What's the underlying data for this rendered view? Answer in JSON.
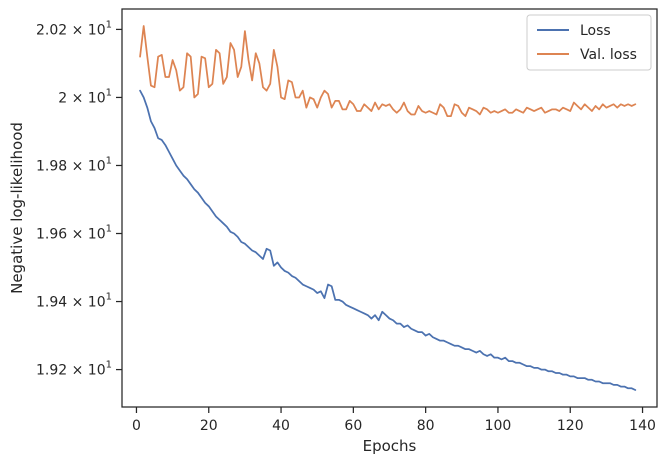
{
  "chart_data": {
    "type": "line",
    "xlabel": "Epochs",
    "ylabel": "Negative log-likelihood",
    "xlim": [
      -4,
      144
    ],
    "ylim": [
      19.09,
      20.26
    ],
    "grid": false,
    "legend_position": "top-right",
    "x_ticks": [
      0,
      20,
      40,
      60,
      80,
      100,
      120,
      140
    ],
    "y_ticks": [
      {
        "value": 19.2,
        "mantissa": "1.92"
      },
      {
        "value": 19.4,
        "mantissa": "1.94"
      },
      {
        "value": 19.6,
        "mantissa": "1.96"
      },
      {
        "value": 19.8,
        "mantissa": "1.98"
      },
      {
        "value": 20.0,
        "mantissa": "2"
      },
      {
        "value": 20.2,
        "mantissa": "2.02"
      }
    ],
    "y_tick_suffix": {
      "times": "×",
      "base": "10",
      "exp": "1"
    },
    "series": [
      {
        "name": "Loss",
        "color": "#4c72b0",
        "x": [
          1,
          2,
          3,
          4,
          5,
          6,
          7,
          8,
          9,
          10,
          11,
          12,
          13,
          14,
          15,
          16,
          17,
          18,
          19,
          20,
          21,
          22,
          23,
          24,
          25,
          26,
          27,
          28,
          29,
          30,
          31,
          32,
          33,
          34,
          35,
          36,
          37,
          38,
          39,
          40,
          41,
          42,
          43,
          44,
          45,
          46,
          47,
          48,
          49,
          50,
          51,
          52,
          53,
          54,
          55,
          56,
          57,
          58,
          59,
          60,
          61,
          62,
          63,
          64,
          65,
          66,
          67,
          68,
          69,
          70,
          71,
          72,
          73,
          74,
          75,
          76,
          77,
          78,
          79,
          80,
          81,
          82,
          83,
          84,
          85,
          86,
          87,
          88,
          89,
          90,
          91,
          92,
          93,
          94,
          95,
          96,
          97,
          98,
          99,
          100,
          101,
          102,
          103,
          104,
          105,
          106,
          107,
          108,
          109,
          110,
          111,
          112,
          113,
          114,
          115,
          116,
          117,
          118,
          119,
          120,
          121,
          122,
          123,
          124,
          125,
          126,
          127,
          128,
          129,
          130,
          131,
          132,
          133,
          134,
          135,
          136,
          137,
          138
        ],
        "y": [
          20.02,
          20.0,
          19.97,
          19.93,
          19.91,
          19.88,
          19.875,
          19.86,
          19.84,
          19.82,
          19.8,
          19.785,
          19.77,
          19.76,
          19.745,
          19.73,
          19.72,
          19.705,
          19.69,
          19.68,
          19.665,
          19.65,
          19.64,
          19.63,
          19.62,
          19.605,
          19.6,
          19.59,
          19.575,
          19.57,
          19.56,
          19.55,
          19.545,
          19.535,
          19.525,
          19.555,
          19.55,
          19.505,
          19.515,
          19.5,
          19.49,
          19.485,
          19.475,
          19.47,
          19.46,
          19.45,
          19.445,
          19.44,
          19.435,
          19.425,
          19.43,
          19.41,
          19.45,
          19.445,
          19.405,
          19.405,
          19.4,
          19.39,
          19.385,
          19.38,
          19.375,
          19.37,
          19.365,
          19.36,
          19.35,
          19.36,
          19.345,
          19.37,
          19.36,
          19.35,
          19.345,
          19.335,
          19.335,
          19.325,
          19.33,
          19.32,
          19.315,
          19.31,
          19.31,
          19.3,
          19.305,
          19.295,
          19.29,
          19.285,
          19.285,
          19.28,
          19.275,
          19.27,
          19.27,
          19.265,
          19.26,
          19.26,
          19.255,
          19.25,
          19.255,
          19.245,
          19.24,
          19.245,
          19.235,
          19.235,
          19.23,
          19.235,
          19.225,
          19.225,
          19.22,
          19.22,
          19.215,
          19.21,
          19.21,
          19.205,
          19.205,
          19.2,
          19.2,
          19.195,
          19.195,
          19.19,
          19.19,
          19.185,
          19.185,
          19.18,
          19.18,
          19.175,
          19.175,
          19.175,
          19.17,
          19.17,
          19.165,
          19.165,
          19.16,
          19.16,
          19.16,
          19.155,
          19.155,
          19.15,
          19.15,
          19.145,
          19.145,
          19.14
        ]
      },
      {
        "name": "Val. loss",
        "color": "#dd8452",
        "x": [
          1,
          2,
          3,
          4,
          5,
          6,
          7,
          8,
          9,
          10,
          11,
          12,
          13,
          14,
          15,
          16,
          17,
          18,
          19,
          20,
          21,
          22,
          23,
          24,
          25,
          26,
          27,
          28,
          29,
          30,
          31,
          32,
          33,
          34,
          35,
          36,
          37,
          38,
          39,
          40,
          41,
          42,
          43,
          44,
          45,
          46,
          47,
          48,
          49,
          50,
          51,
          52,
          53,
          54,
          55,
          56,
          57,
          58,
          59,
          60,
          61,
          62,
          63,
          64,
          65,
          66,
          67,
          68,
          69,
          70,
          71,
          72,
          73,
          74,
          75,
          76,
          77,
          78,
          79,
          80,
          81,
          82,
          83,
          84,
          85,
          86,
          87,
          88,
          89,
          90,
          91,
          92,
          93,
          94,
          95,
          96,
          97,
          98,
          99,
          100,
          101,
          102,
          103,
          104,
          105,
          106,
          107,
          108,
          109,
          110,
          111,
          112,
          113,
          114,
          115,
          116,
          117,
          118,
          119,
          120,
          121,
          122,
          123,
          124,
          125,
          126,
          127,
          128,
          129,
          130,
          131,
          132,
          133,
          134,
          135,
          136,
          137,
          138
        ],
        "y": [
          20.12,
          20.21,
          20.12,
          20.035,
          20.03,
          20.12,
          20.125,
          20.06,
          20.06,
          20.11,
          20.08,
          20.02,
          20.03,
          20.13,
          20.12,
          20.0,
          20.01,
          20.12,
          20.115,
          20.03,
          20.04,
          20.14,
          20.13,
          20.04,
          20.06,
          20.16,
          20.14,
          20.06,
          20.09,
          20.195,
          20.11,
          20.05,
          20.13,
          20.1,
          20.03,
          20.02,
          20.04,
          20.14,
          20.09,
          20.0,
          19.995,
          20.05,
          20.045,
          20.0,
          20.0,
          20.02,
          19.97,
          20.0,
          19.995,
          19.97,
          20.0,
          20.02,
          20.01,
          19.97,
          19.99,
          19.99,
          19.965,
          19.965,
          19.99,
          19.98,
          19.96,
          19.96,
          19.98,
          19.97,
          19.96,
          19.985,
          19.965,
          19.98,
          19.975,
          19.98,
          19.965,
          19.955,
          19.965,
          19.985,
          19.96,
          19.95,
          19.95,
          19.975,
          19.96,
          19.955,
          19.96,
          19.955,
          19.95,
          19.98,
          19.97,
          19.945,
          19.945,
          19.98,
          19.975,
          19.955,
          19.945,
          19.97,
          19.965,
          19.96,
          19.95,
          19.97,
          19.965,
          19.955,
          19.96,
          19.955,
          19.96,
          19.965,
          19.955,
          19.955,
          19.965,
          19.96,
          19.955,
          19.97,
          19.965,
          19.96,
          19.965,
          19.97,
          19.955,
          19.96,
          19.965,
          19.965,
          19.96,
          19.97,
          19.965,
          19.96,
          19.985,
          19.975,
          19.965,
          19.98,
          19.97,
          19.96,
          19.975,
          19.965,
          19.98,
          19.97,
          19.975,
          19.98,
          19.97,
          19.98,
          19.975,
          19.98,
          19.975,
          19.98
        ]
      }
    ]
  }
}
